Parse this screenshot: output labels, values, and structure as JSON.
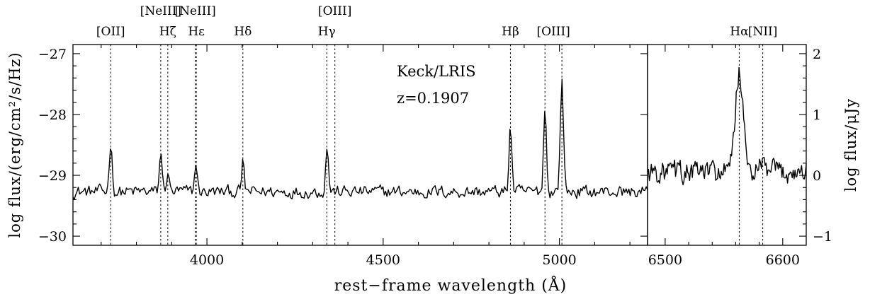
{
  "chart_data": {
    "type": "line",
    "panels": [
      {
        "name": "blue",
        "xlim": [
          3620,
          5250
        ],
        "ylim": [
          -30.15,
          -26.85
        ],
        "xticks": [
          4000,
          4500,
          5000
        ],
        "xtick_labels": [
          "4000",
          "4500",
          "5000"
        ],
        "yticks": [
          -30,
          -29,
          -28,
          -27
        ],
        "ytick_labels": [
          "−30",
          "−29",
          "−28",
          "−27"
        ],
        "continuum": -29.27,
        "emission_lines": [
          {
            "name": "[OII]",
            "wavelength": 3727,
            "peak": -28.45,
            "width": 4
          },
          {
            "name": "[NeIII]",
            "wavelength": 3869,
            "peak": -28.58,
            "width": 3.5
          },
          {
            "name": "Hζ",
            "wavelength": 3889,
            "peak": -28.92,
            "width": 3.5
          },
          {
            "name": "Hε",
            "wavelength": 3969,
            "peak": -28.78,
            "width": 3.5
          },
          {
            "name": "Hδ",
            "wavelength": 4102,
            "peak": -28.8,
            "width": 3.5
          },
          {
            "name": "Hγ",
            "wavelength": 4341,
            "peak": -28.52,
            "width": 4
          },
          {
            "name": "Hβ",
            "wavelength": 4861,
            "peak": -28.18,
            "width": 4
          },
          {
            "name": "[OIII]",
            "wavelength": 4959,
            "peak": -27.88,
            "width": 4
          },
          {
            "name": "[OIII]",
            "wavelength": 5007,
            "peak": -27.45,
            "width": 4.5
          }
        ],
        "markers": [
          3727,
          3869,
          3889,
          3967,
          3970,
          4102,
          4340,
          4363,
          4861,
          4959,
          5007
        ]
      },
      {
        "name": "red",
        "xlim": [
          6485,
          6620
        ],
        "ylim": [
          -1.15,
          2.15
        ],
        "xticks": [
          6500,
          6600
        ],
        "xtick_labels": [
          "6500",
          "6600"
        ],
        "yticks": [
          -1,
          0,
          1,
          2
        ],
        "ytick_labels": [
          "−1",
          "0",
          "1",
          "2"
        ],
        "continuum": 0.05,
        "emission_lines": [
          {
            "name": "Hα",
            "wavelength": 6563,
            "peak": 1.72,
            "width": 3.2
          },
          {
            "name": "[NII]",
            "wavelength": 6583,
            "peak": 0.18,
            "width": 2
          }
        ],
        "markers": [
          6563,
          6583
        ]
      }
    ],
    "line_labels": [
      {
        "text": "[OII]",
        "wavelength": 3727,
        "row": 2,
        "panel": "blue"
      },
      {
        "text": "[NeIII]",
        "wavelength": 3869,
        "row": 1,
        "panel": "blue"
      },
      {
        "text": "Hζ",
        "wavelength": 3889,
        "row": 2,
        "panel": "blue"
      },
      {
        "text": "[NeIII]",
        "wavelength": 3967,
        "row": 1,
        "panel": "blue"
      },
      {
        "text": "Hε",
        "wavelength": 3970,
        "row": 2,
        "panel": "blue"
      },
      {
        "text": "Hδ",
        "wavelength": 4102,
        "row": 2,
        "panel": "blue"
      },
      {
        "text": "[OIII]",
        "wavelength": 4363,
        "row": 1,
        "panel": "blue"
      },
      {
        "text": "Hγ",
        "wavelength": 4340,
        "row": 2,
        "panel": "blue"
      },
      {
        "text": "Hβ",
        "wavelength": 4861,
        "row": 2,
        "panel": "blue"
      },
      {
        "text": "[OIII]",
        "wavelength": 4983,
        "row": 2,
        "panel": "blue"
      },
      {
        "text": "Hα",
        "wavelength": 6563,
        "row": 2,
        "panel": "red"
      },
      {
        "text": "[NII]",
        "wavelength": 6583,
        "row": 2,
        "panel": "red"
      }
    ],
    "annotation_instrument": "Keck/LRIS",
    "annotation_redshift": "z=0.1907",
    "xlabel": "rest−frame wavelength (Å)",
    "ylabel_left": "log flux/(erg/cm²/s/Hz)",
    "ylabel_right": "log flux/μJy",
    "grid": false
  }
}
